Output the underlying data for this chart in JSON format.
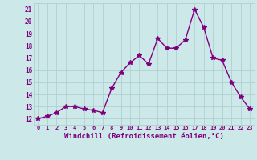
{
  "x": [
    0,
    1,
    2,
    3,
    4,
    5,
    6,
    7,
    8,
    9,
    10,
    11,
    12,
    13,
    14,
    15,
    16,
    17,
    18,
    19,
    20,
    21,
    22,
    23
  ],
  "y": [
    12.0,
    12.2,
    12.5,
    13.0,
    13.0,
    12.8,
    12.7,
    12.5,
    14.5,
    15.8,
    16.6,
    17.2,
    16.5,
    18.6,
    17.8,
    17.8,
    18.5,
    21.0,
    19.5,
    17.0,
    16.8,
    15.0,
    13.8,
    12.8
  ],
  "line_color": "#800080",
  "marker": "*",
  "marker_size": 4,
  "bg_color": "#cce8e8",
  "grid_color": "#b0d0d0",
  "xlabel": "Windchill (Refroidissement éolien,°C)",
  "xlabel_fontsize": 6.5,
  "tick_color": "#800080",
  "ylabel_ticks": [
    12,
    13,
    14,
    15,
    16,
    17,
    18,
    19,
    20,
    21
  ],
  "xtick_labels": [
    "0",
    "1",
    "2",
    "3",
    "4",
    "5",
    "6",
    "7",
    "8",
    "9",
    "10",
    "11",
    "12",
    "13",
    "14",
    "15",
    "16",
    "17",
    "18",
    "19",
    "20",
    "21",
    "22",
    "23"
  ],
  "ylim": [
    11.5,
    21.5
  ],
  "xlim": [
    -0.5,
    23.5
  ]
}
